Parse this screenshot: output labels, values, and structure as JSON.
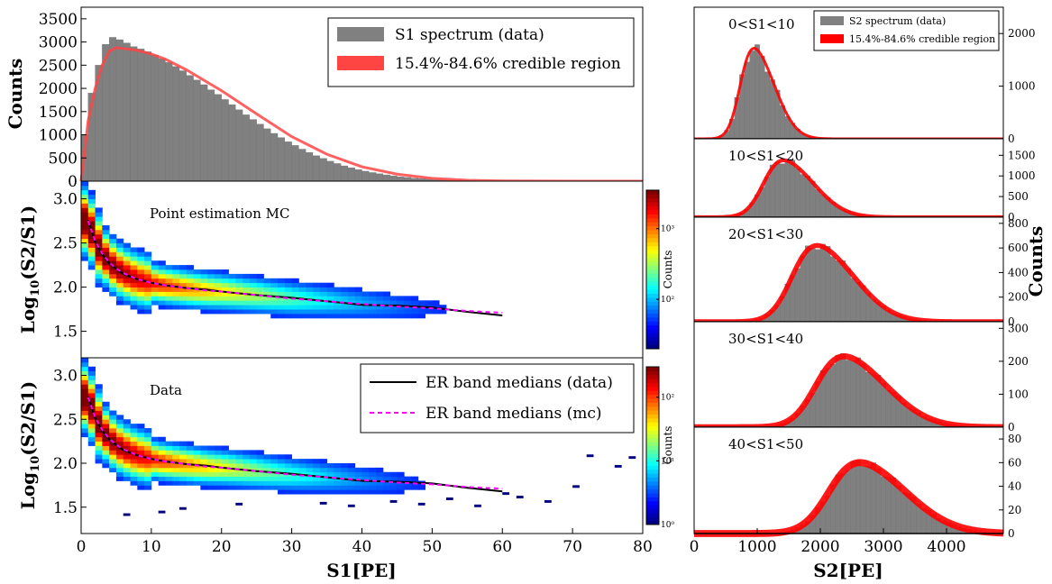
{
  "chart_data": [
    {
      "type": "bar",
      "panel": "s1-spectrum",
      "xlabel": "",
      "ylabel": "Counts",
      "xlim": [
        0,
        80
      ],
      "ylim": [
        0,
        3750
      ],
      "yticks": [
        0,
        500,
        1000,
        1500,
        2000,
        2500,
        3000,
        3500
      ],
      "bin_width": 1,
      "x": [
        1,
        2,
        3,
        4,
        5,
        6,
        7,
        8,
        9,
        10,
        11,
        12,
        13,
        14,
        15,
        16,
        17,
        18,
        19,
        20,
        21,
        22,
        23,
        24,
        25,
        26,
        27,
        28,
        29,
        30,
        31,
        32,
        33,
        34,
        35,
        36,
        37,
        38,
        39,
        40,
        41,
        42,
        43,
        44,
        45,
        46,
        47,
        48,
        49,
        50,
        51,
        52,
        53,
        54,
        55,
        56,
        57,
        58,
        59,
        60,
        61,
        62,
        63,
        64,
        65,
        66,
        67,
        68,
        69,
        70
      ],
      "values": [
        1000,
        1900,
        2500,
        2950,
        3100,
        3050,
        2980,
        2900,
        2850,
        2790,
        2720,
        2640,
        2560,
        2470,
        2380,
        2280,
        2180,
        2080,
        1970,
        1870,
        1760,
        1650,
        1540,
        1430,
        1330,
        1230,
        1130,
        1030,
        940,
        850,
        770,
        690,
        620,
        550,
        490,
        430,
        380,
        330,
        290,
        250,
        215,
        185,
        160,
        135,
        115,
        95,
        80,
        65,
        55,
        45,
        36,
        29,
        23,
        18,
        14,
        11,
        8,
        6,
        4,
        3,
        2,
        2,
        1,
        1,
        0,
        0,
        0,
        0,
        0,
        0
      ],
      "band": {
        "x": [
          0,
          1,
          2,
          3,
          4,
          5,
          6,
          8,
          10,
          12,
          15,
          18,
          20,
          25,
          30,
          35,
          40,
          45,
          50,
          55,
          60,
          65,
          70,
          80
        ],
        "values": [
          0,
          1300,
          2000,
          2500,
          2800,
          2880,
          2860,
          2820,
          2740,
          2630,
          2400,
          2130,
          1950,
          1450,
          960,
          580,
          310,
          150,
          60,
          20,
          6,
          2,
          0,
          0
        ]
      },
      "legend": [
        {
          "label": "S1 spectrum (data)",
          "color": "#808080"
        },
        {
          "label": "15.4%-84.6% credible region",
          "color": "#ff4444"
        }
      ]
    },
    {
      "type": "heatmap",
      "panel": "mc-band",
      "annotation": "Point estimation MC",
      "ylabel": "Log10(S2/S1)",
      "xlim": [
        0,
        80
      ],
      "ylim": [
        1.2,
        3.2
      ],
      "yticks": [
        1.5,
        2.0,
        2.5,
        3.0
      ],
      "colorbar": {
        "label": "Counts",
        "scale": "log",
        "min": 20,
        "max": 3500,
        "ticks": [
          {
            "v": 100,
            "t": "10²"
          },
          {
            "v": 1000,
            "t": "10³"
          }
        ]
      },
      "median_x": [
        1,
        2,
        3,
        4,
        5,
        6,
        8,
        10,
        12,
        15,
        18,
        20,
        25,
        30,
        35,
        40,
        45,
        50,
        55,
        60
      ],
      "median_mc": [
        2.75,
        2.52,
        2.38,
        2.28,
        2.21,
        2.16,
        2.09,
        2.05,
        2.02,
        1.99,
        1.96,
        1.95,
        1.91,
        1.87,
        1.84,
        1.81,
        1.78,
        1.76,
        1.73,
        1.71
      ],
      "median_data": [
        2.76,
        2.51,
        2.37,
        2.27,
        2.21,
        2.15,
        2.09,
        2.05,
        2.02,
        1.99,
        1.97,
        1.95,
        1.91,
        1.88,
        1.84,
        1.8,
        1.79,
        1.77,
        1.72,
        1.68
      ],
      "max_s1": 64
    },
    {
      "type": "heatmap",
      "panel": "data-band",
      "annotation": "Data",
      "ylabel": "Log10(S2/S1)",
      "xlabel": "S1[PE]",
      "xlim": [
        0,
        80
      ],
      "ylim": [
        1.2,
        3.2
      ],
      "xticks": [
        0,
        10,
        20,
        30,
        40,
        50,
        60,
        70,
        80
      ],
      "yticks": [
        1.5,
        2.0,
        2.5,
        3.0
      ],
      "colorbar": {
        "label": "Counts",
        "scale": "log",
        "min": 1,
        "max": 300,
        "ticks": [
          {
            "v": 1,
            "t": "10⁰"
          },
          {
            "v": 10,
            "t": "10¹"
          },
          {
            "v": 100,
            "t": "10²"
          }
        ]
      },
      "max_s1": 60,
      "legend": [
        {
          "label": "ER band medians (data)",
          "color": "#000000",
          "style": "solid"
        },
        {
          "label": "ER band medians (mc)",
          "color": "#ff00ff",
          "style": "dashed"
        }
      ]
    },
    {
      "type": "bar",
      "panel": "s2-slices",
      "xlabel": "S2[PE]",
      "ylabel": "Counts",
      "xlim": [
        0,
        4900
      ],
      "xticks": [
        0,
        1000,
        2000,
        3000,
        4000
      ],
      "legend": [
        {
          "label": "S2 spectrum (data)",
          "color": "#808080"
        },
        {
          "label": "15.4%-84.6% credible region",
          "color": "#ff0000"
        }
      ],
      "slices": [
        {
          "label": "0<S1<10",
          "mean": 950,
          "sigma": 260,
          "peak": 1720,
          "ylim": [
            0,
            2500
          ],
          "yticks": [
            0,
            1000,
            2000
          ]
        },
        {
          "label": "10<S1<20",
          "mean": 1420,
          "sigma": 380,
          "peak": 1380,
          "ylim": [
            0,
            1900
          ],
          "yticks": [
            0,
            500,
            1000,
            1500
          ]
        },
        {
          "label": "20<S1<30",
          "mean": 1950,
          "sigma": 470,
          "peak": 620,
          "ylim": [
            0,
            850
          ],
          "yticks": [
            0,
            200,
            400,
            600,
            800
          ]
        },
        {
          "label": "30<S1<40",
          "mean": 2380,
          "sigma": 530,
          "peak": 215,
          "ylim": [
            0,
            320
          ],
          "yticks": [
            0,
            100,
            200,
            300
          ]
        },
        {
          "label": "40<S1<50",
          "mean": 2630,
          "sigma": 580,
          "peak": 60,
          "ylim": [
            0,
            90
          ],
          "yticks": [
            0,
            20,
            40,
            60,
            80
          ]
        }
      ]
    }
  ],
  "labels": {
    "counts_top": "Counts",
    "log_prefix": "Log",
    "log_sub": "10",
    "log_suffix": "(S2/S1)",
    "mc_annotation": "Point estimation MC",
    "data_annotation": "Data",
    "cbar_label": "Counts",
    "x_label_left": "S1[PE]",
    "x_label_right": "S2[PE]",
    "counts_right": "Counts",
    "legend_s1_data": "S1 spectrum (data)",
    "legend_s1_band": "15.4%-84.6% credible region",
    "legend_median_data": "ER band medians (data)",
    "legend_median_mc": "ER band medians (mc)",
    "legend_s2_data": "S2 spectrum (data)",
    "legend_s2_band": "15.4%-84.6% credible region"
  }
}
